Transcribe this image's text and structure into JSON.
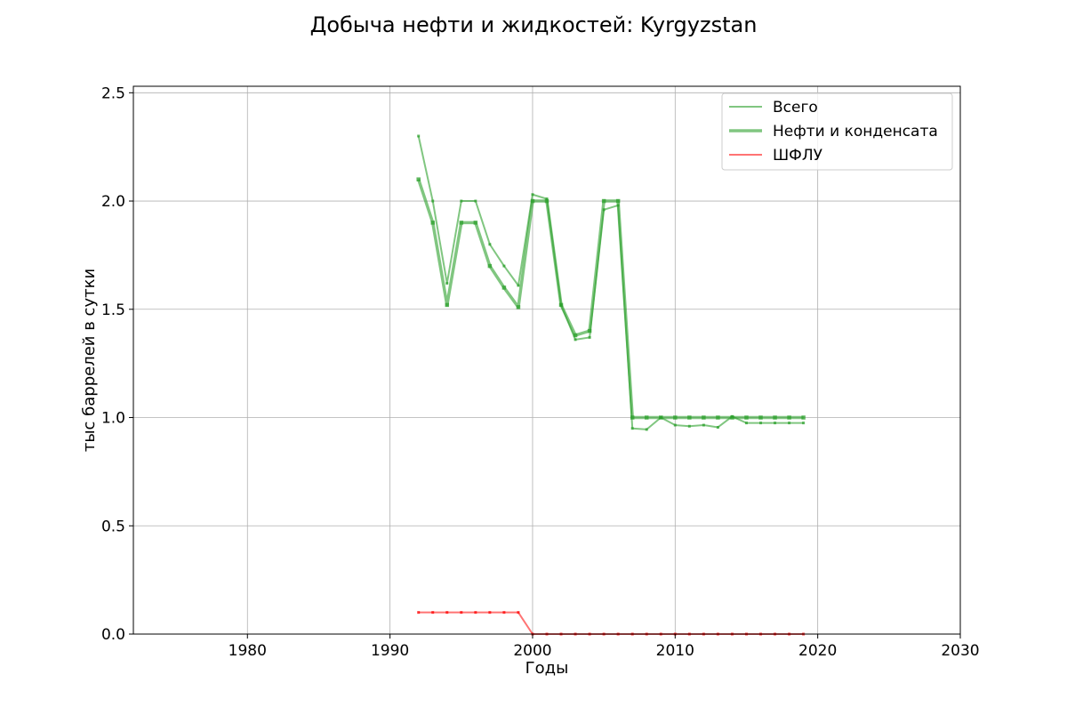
{
  "chart_data": {
    "type": "line",
    "title": "Добыча нефти и жидкостей: Kyrgyzstan",
    "xlabel": "Годы",
    "ylabel": "тыс баррелей в сутки",
    "xlim": [
      1972,
      2030
    ],
    "ylim": [
      0,
      2.53
    ],
    "xticks": [
      1980,
      1990,
      2000,
      2010,
      2020,
      2030
    ],
    "xtick_labels": [
      "1980",
      "1990",
      "2000",
      "2010",
      "2020",
      "2030"
    ],
    "yticks": [
      0.0,
      0.5,
      1.0,
      1.5,
      2.0,
      2.5
    ],
    "ytick_labels": [
      "0.0",
      "0.5",
      "1.0",
      "1.5",
      "2.0",
      "2.5"
    ],
    "grid": true,
    "legend_position": "top-right",
    "series": [
      {
        "name": "Всего",
        "color": "#2ca02c",
        "style": "thin",
        "x": [
          1992,
          1993,
          1994,
          1995,
          1996,
          1997,
          1998,
          1999,
          2000,
          2001,
          2002,
          2003,
          2004,
          2005,
          2006,
          2007,
          2008,
          2009,
          2010,
          2011,
          2012,
          2013,
          2014,
          2015,
          2016,
          2017,
          2018,
          2019
        ],
        "y": [
          2.3,
          2.0,
          1.62,
          2.0,
          2.0,
          1.8,
          1.7,
          1.61,
          2.03,
          2.01,
          1.52,
          1.36,
          1.37,
          1.96,
          1.98,
          0.95,
          0.945,
          1.0,
          0.965,
          0.96,
          0.965,
          0.955,
          1.005,
          0.975,
          0.975,
          0.975,
          0.975,
          0.975
        ]
      },
      {
        "name": "Нефти и конденсата",
        "color": "#2ca02c",
        "style": "thick",
        "x": [
          1992,
          1993,
          1994,
          1995,
          1996,
          1997,
          1998,
          1999,
          2000,
          2001,
          2002,
          2003,
          2004,
          2005,
          2006,
          2007,
          2008,
          2009,
          2010,
          2011,
          2012,
          2013,
          2014,
          2015,
          2016,
          2017,
          2018,
          2019
        ],
        "y": [
          2.1,
          1.9,
          1.52,
          1.9,
          1.9,
          1.7,
          1.6,
          1.51,
          2.0,
          2.0,
          1.52,
          1.38,
          1.4,
          2.0,
          2.0,
          1.0,
          1.0,
          1.0,
          1.0,
          1.0,
          1.0,
          1.0,
          1.0,
          1.0,
          1.0,
          1.0,
          1.0,
          1.0
        ]
      },
      {
        "name": "ШФЛУ",
        "color": "#ff0000",
        "style": "thin",
        "x": [
          1992,
          1993,
          1994,
          1995,
          1996,
          1997,
          1998,
          1999,
          2000,
          2001,
          2002,
          2003,
          2004,
          2005,
          2006,
          2007,
          2008,
          2009,
          2010,
          2011,
          2012,
          2013,
          2014,
          2015,
          2016,
          2017,
          2018,
          2019
        ],
        "y": [
          0.1,
          0.1,
          0.1,
          0.1,
          0.1,
          0.1,
          0.1,
          0.1,
          0,
          0,
          0,
          0,
          0,
          0,
          0,
          0,
          0,
          0,
          0,
          0,
          0,
          0,
          0,
          0,
          0,
          0,
          0,
          0
        ]
      }
    ]
  }
}
